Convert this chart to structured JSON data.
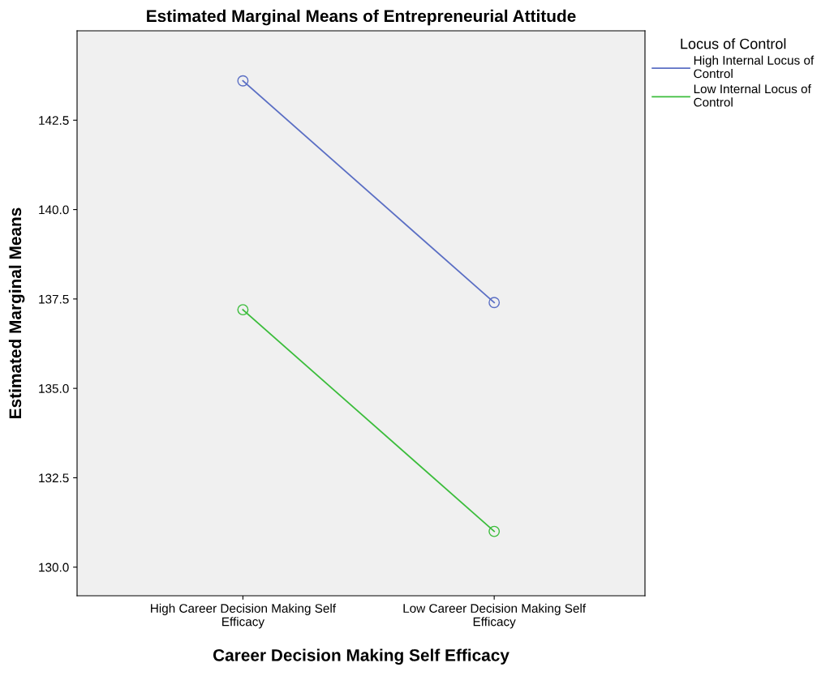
{
  "chart_data": {
    "type": "line",
    "title": "Estimated Marginal Means of Entrepreneurial Attitude",
    "xlabel": "Career Decision Making Self Efficacy",
    "ylabel": "Estimated Marginal Means",
    "legend_title": "Locus of Control",
    "categories": [
      "High Career Decision Making Self\nEfficacy",
      "Low Career Decision Making Self\nEfficacy"
    ],
    "series": [
      {
        "name": "High Internal Locus of\nControl",
        "color": "#5b6fc4",
        "values": [
          143.6,
          137.4
        ]
      },
      {
        "name": "Low Internal Locus of\nControl",
        "color": "#3cbd3c",
        "values": [
          137.2,
          131.0
        ]
      }
    ],
    "ylim": [
      129.2,
      145.0
    ],
    "yticks": [
      {
        "value": 130,
        "label": "130.0"
      },
      {
        "value": 132.5,
        "label": "132.5"
      },
      {
        "value": 135,
        "label": "135.0"
      },
      {
        "value": 137.5,
        "label": "137.5"
      },
      {
        "value": 140,
        "label": "140.0"
      },
      {
        "value": 142.5,
        "label": "142.5"
      }
    ],
    "grid": false,
    "legend": "top right",
    "marker": "circle",
    "line_style": "solid"
  }
}
